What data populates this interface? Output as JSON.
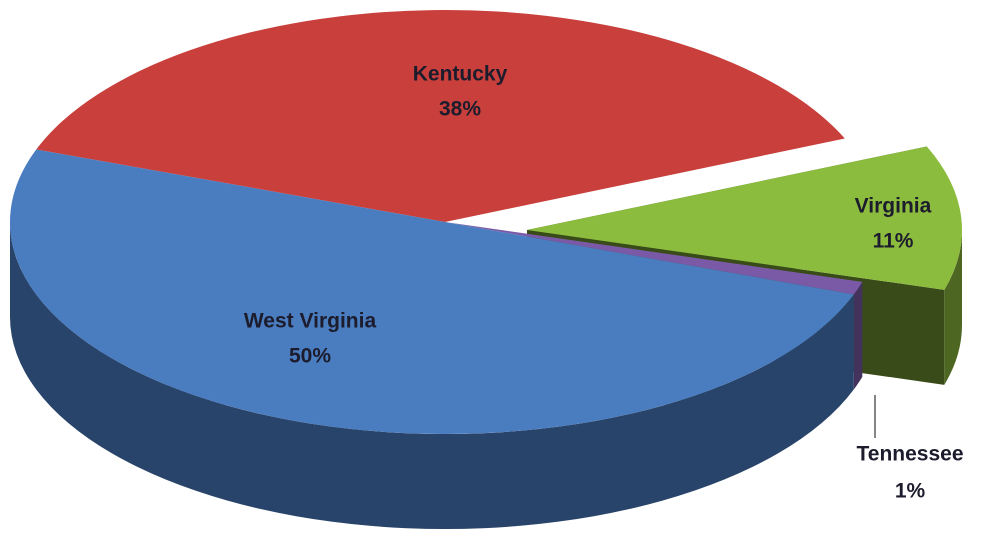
{
  "chart_data": {
    "type": "pie",
    "categories": [
      "Kentucky",
      "Virginia",
      "Tennessee",
      "West Virginia"
    ],
    "values": [
      38,
      11,
      1,
      50
    ],
    "value_labels": [
      "38%",
      "11%",
      "1%",
      "50%"
    ],
    "colors": [
      "#c83f3b",
      "#8cbc3e",
      "#7a5aa6",
      "#4a7cc0"
    ]
  }
}
